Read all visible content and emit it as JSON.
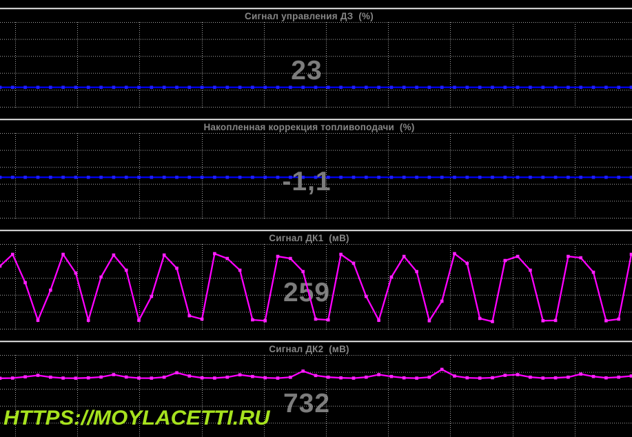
{
  "watermark": {
    "text": "HTTPS://MOYLACETTI.RU",
    "color": "#a6e21e"
  },
  "colors": {
    "background": "#000000",
    "grid": "#ababab",
    "title_text": "#868686",
    "value_text": "#7c7c7c",
    "blue_trace": "#0000ee",
    "magenta_trace": "#ff00ff"
  },
  "chart_data": [
    {
      "type": "line",
      "title": "Сигнал управления ДЗ  (%)",
      "display_value": "23",
      "unit": "%",
      "ylim": [
        0,
        100
      ],
      "grid": true,
      "legend": false,
      "line_color": "#0000ee",
      "marker_color": "#1f1fff",
      "marker": "square",
      "values": [
        23,
        23,
        23,
        23,
        23,
        23,
        23,
        23,
        23,
        23,
        23,
        23,
        23,
        23,
        23,
        23,
        23,
        23,
        23,
        23,
        23,
        23,
        23,
        23,
        23,
        23,
        23,
        23,
        23,
        23,
        23,
        23,
        23,
        23,
        23,
        23,
        23,
        23,
        23,
        23,
        23,
        23,
        23,
        23,
        23,
        23,
        23,
        23,
        23,
        23,
        23
      ]
    },
    {
      "type": "line",
      "title": "Накопленная коррекция топливоподачи  (%)",
      "display_value": "-1,1",
      "unit": "%",
      "ylim": [
        -25,
        25
      ],
      "grid": true,
      "legend": false,
      "line_color": "#0000ee",
      "marker_color": "#1f1fff",
      "marker": "square",
      "values": [
        -1.1,
        -1.1,
        -1.1,
        -1.1,
        -1.1,
        -1.1,
        -1.1,
        -1.1,
        -1.1,
        -1.1,
        -1.1,
        -1.1,
        -1.1,
        -1.1,
        -1.1,
        -1.1,
        -1.1,
        -1.1,
        -1.1,
        -1.1,
        -1.1,
        -1.1,
        -1.1,
        -1.1,
        -1.1,
        -1.1,
        -1.1,
        -1.1,
        -1.1,
        -1.1,
        -1.1,
        -1.1,
        -1.1,
        -1.1,
        -1.1,
        -1.1,
        -1.1,
        -1.1,
        -1.1,
        -1.1,
        -1.1,
        -1.1,
        -1.1,
        -1.1,
        -1.1,
        -1.1,
        -1.1,
        -1.1,
        -1.1,
        -1.1,
        -1.1
      ]
    },
    {
      "type": "line",
      "title": "Сигнал ДК1  (мВ)",
      "display_value": "259",
      "unit": "мВ",
      "ylim": [
        0,
        1000
      ],
      "grid": true,
      "legend": false,
      "line_color": "#ff00ff",
      "marker_color": "#ff22ff",
      "marker": "square",
      "values": [
        740,
        878,
        545,
        100,
        455,
        878,
        658,
        100,
        610,
        870,
        691,
        100,
        382,
        870,
        715,
        154,
        114,
        886,
        829,
        691,
        106,
        95,
        854,
        829,
        675,
        114,
        105,
        878,
        772,
        382,
        100,
        610,
        854,
        675,
        95,
        325,
        886,
        772,
        122,
        85,
        805,
        854,
        691,
        95,
        98,
        854,
        837,
        667,
        95,
        114,
        878
      ]
    },
    {
      "type": "line",
      "title": "Сигнал ДК2  (мВ)",
      "display_value": "732",
      "unit": "мВ",
      "ylim": [
        0,
        1000
      ],
      "grid": true,
      "legend": false,
      "line_color": "#ff00ff",
      "marker_color": "#ff22ff",
      "marker": "square",
      "values": [
        725,
        728,
        742,
        760,
        738,
        728,
        726,
        730,
        740,
        768,
        740,
        728,
        727,
        738,
        790,
        752,
        730,
        728,
        738,
        766,
        746,
        731,
        727,
        737,
        810,
        758,
        738,
        730,
        727,
        738,
        768,
        746,
        730,
        727,
        738,
        830,
        752,
        731,
        727,
        732,
        760,
        768,
        738,
        728,
        730,
        738,
        775,
        746,
        730,
        738,
        752
      ]
    }
  ]
}
